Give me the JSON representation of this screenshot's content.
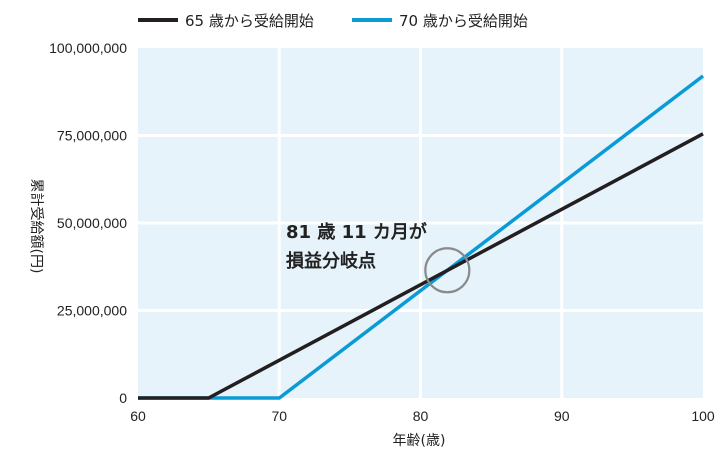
{
  "chart_data": {
    "type": "line",
    "xlabel": "年齢(歳)",
    "ylabel": "累計受給額(円)",
    "xlim": [
      60,
      100
    ],
    "ylim": [
      0,
      100000000
    ],
    "x_ticks": [
      "60",
      "70",
      "80",
      "90",
      "100"
    ],
    "y_ticks": [
      "0",
      "25,000,000",
      "50,000,000",
      "75,000,000",
      "100,000,000"
    ],
    "grid": true,
    "legend_position": "top-left",
    "background_color": "#e6f3fb",
    "series": [
      {
        "name": "65 歳から受給開始",
        "color": "#231f20",
        "points": [
          [
            60,
            0
          ],
          [
            65,
            0
          ],
          [
            100,
            75500000
          ]
        ]
      },
      {
        "name": "70 歳から受給開始",
        "color": "#0a9bd7",
        "points": [
          [
            60,
            0
          ],
          [
            70,
            0
          ],
          [
            100,
            92000000
          ]
        ]
      }
    ],
    "annotation": {
      "lines": [
        "81 歳 11 カ月が",
        "損益分岐点"
      ],
      "x": 81.9,
      "y": 36500000
    }
  }
}
